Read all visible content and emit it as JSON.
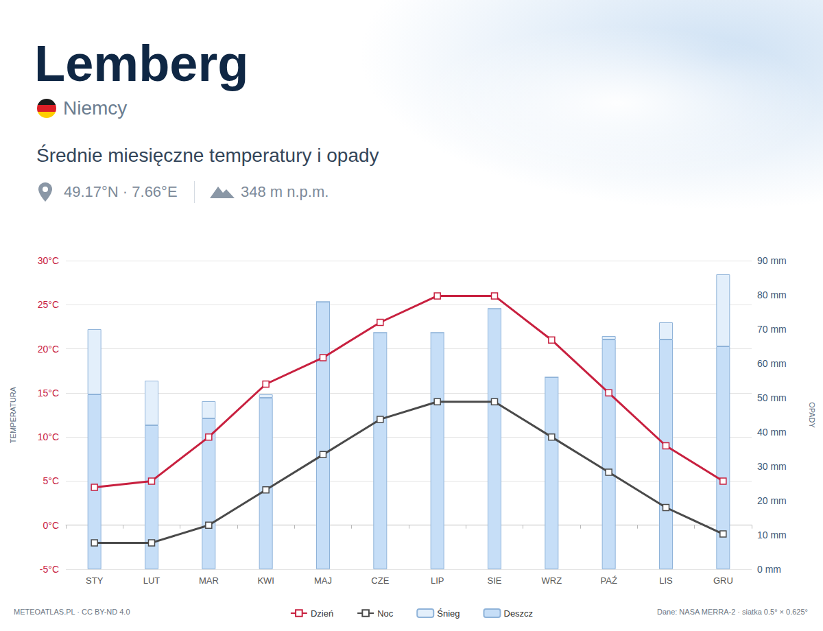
{
  "header": {
    "title": "Lemberg",
    "country": "Niemcy",
    "subtitle": "Średnie miesięczne temperatury i opady",
    "coordinates": "49.17°N · 7.66°E",
    "elevation": "348 m n.p.m."
  },
  "footer": {
    "credit": "METEOATLAS.PL · CC BY-ND 4.0",
    "source": "Dane: NASA MERRA-2 · siatka 0.5° × 0.625°"
  },
  "chart_data": {
    "type": "bar",
    "y_label": "TEMPERATURA",
    "y2_label": "OPADY",
    "categories": [
      "STY",
      "LUT",
      "MAR",
      "KWI",
      "MAJ",
      "CZE",
      "LIP",
      "SIE",
      "WRZ",
      "PAŹ",
      "LIS",
      "GRU"
    ],
    "series": [
      {
        "name": "Dzień",
        "type": "line",
        "color": "#c8203f",
        "marker": "square",
        "values": [
          4.3,
          5,
          10,
          16,
          19,
          23,
          26,
          26,
          21,
          15,
          9,
          5
        ]
      },
      {
        "name": "Noc",
        "type": "line",
        "color": "#4a4a4a",
        "marker": "square",
        "values": [
          -2,
          -2,
          0,
          4,
          8,
          12,
          14,
          14,
          10,
          6,
          2,
          -1
        ]
      },
      {
        "name": "Śnieg",
        "type": "bar",
        "axis": "y2",
        "color": "#e3effb",
        "values": [
          19,
          13,
          5,
          1,
          0,
          0,
          0,
          0,
          0,
          1,
          5,
          21
        ]
      },
      {
        "name": "Deszcz",
        "type": "bar",
        "axis": "y2",
        "color": "#c6def7",
        "values": [
          51,
          42,
          44,
          50,
          78,
          69,
          69,
          76,
          56,
          67,
          67,
          65
        ]
      }
    ],
    "stacked": true,
    "ylim": [
      -5,
      30
    ],
    "yticks": [
      {
        "value": -5,
        "label": "-5°C"
      },
      {
        "value": 0,
        "label": "0°C"
      },
      {
        "value": 5,
        "label": "5°C"
      },
      {
        "value": 10,
        "label": "10°C"
      },
      {
        "value": 15,
        "label": "15°C"
      },
      {
        "value": 20,
        "label": "20°C"
      },
      {
        "value": 25,
        "label": "25°C"
      },
      {
        "value": 30,
        "label": "30°C"
      }
    ],
    "y2lim": [
      0,
      90
    ],
    "y2ticks": [
      {
        "value": 0,
        "label": "0 mm"
      },
      {
        "value": 10,
        "label": "10 mm"
      },
      {
        "value": 20,
        "label": "20 mm"
      },
      {
        "value": 30,
        "label": "30 mm"
      },
      {
        "value": 40,
        "label": "40 mm"
      },
      {
        "value": 50,
        "label": "50 mm"
      },
      {
        "value": 60,
        "label": "60 mm"
      },
      {
        "value": 70,
        "label": "70 mm"
      },
      {
        "value": 80,
        "label": "80 mm"
      },
      {
        "value": 90,
        "label": "90 mm"
      }
    ],
    "grid": true,
    "legend": "bottom"
  }
}
